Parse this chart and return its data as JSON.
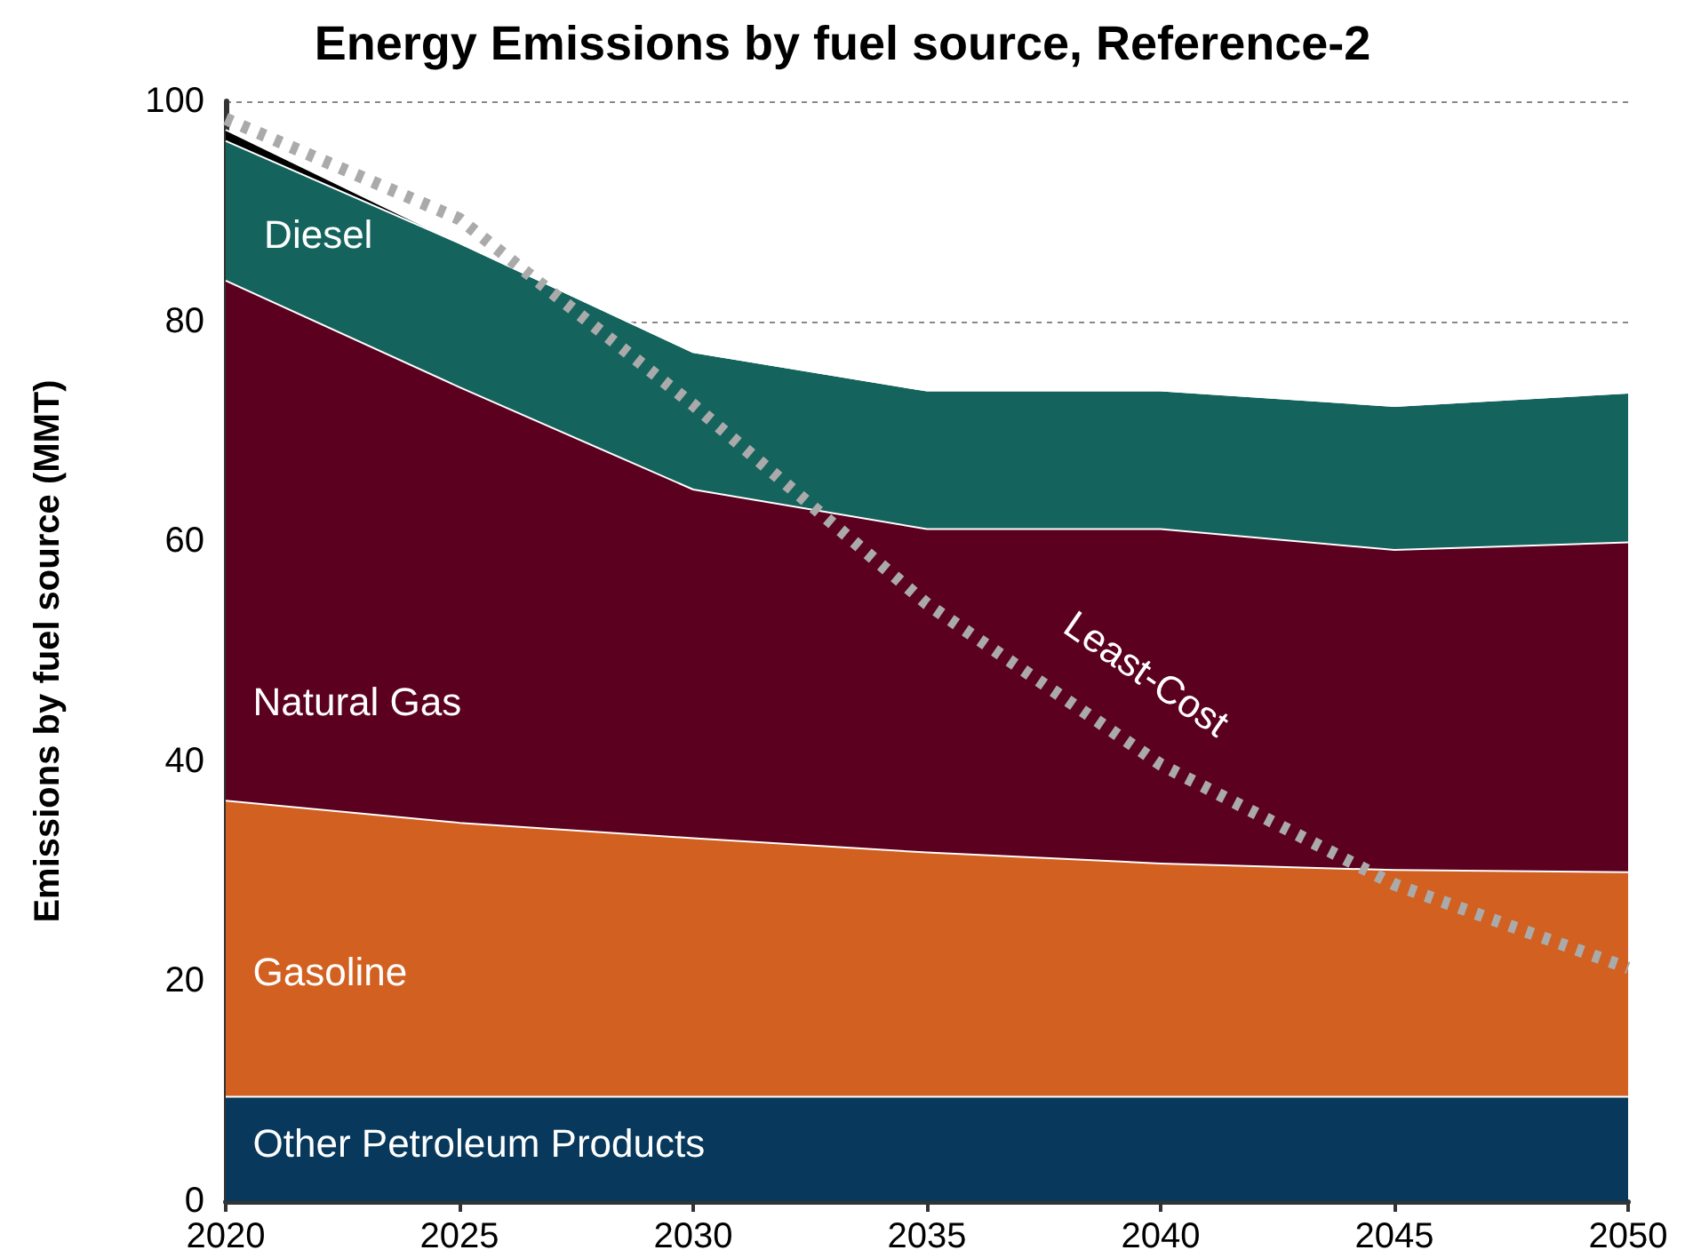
{
  "chart_data": {
    "type": "area",
    "title": "Energy Emissions by fuel source, Reference-2",
    "ylabel": "Emissions by fuel source (MMT)",
    "x": [
      2020,
      2025,
      2030,
      2035,
      2040,
      2045,
      2050
    ],
    "stacked": true,
    "grid": "y",
    "legend": false,
    "xlim": [
      2020,
      2050
    ],
    "xticks": [
      2020,
      2025,
      2030,
      2035,
      2040,
      2045,
      2050
    ],
    "ylim": [
      0,
      100
    ],
    "yticks": [
      0,
      20,
      40,
      60,
      80,
      100
    ],
    "series": [
      {
        "name": "Other Petroleum Products",
        "color": "#08395c",
        "values": [
          9.5,
          9.5,
          9.5,
          9.5,
          9.5,
          9.5,
          9.5
        ]
      },
      {
        "name": "Gasoline",
        "color": "#d26020",
        "values": [
          26.9,
          24.9,
          23.5,
          22.2,
          21.2,
          20.6,
          20.4
        ]
      },
      {
        "name": "Natural Gas",
        "color": "#5c0020",
        "values": [
          47.3,
          39.6,
          31.7,
          29.4,
          30.4,
          29.1,
          30.0
        ]
      },
      {
        "name": "Diesel",
        "color": "#15635d",
        "values": [
          12.7,
          13.1,
          12.5,
          12.6,
          12.6,
          13.1,
          13.6
        ]
      },
      {
        "color": "#000000",
        "values": [
          1.0,
          0,
          0,
          0,
          0,
          0,
          0
        ]
      },
      {
        "name": "Least-Cost",
        "type": "line",
        "line_style": "dotted",
        "color": "#aaaaaa",
        "values": [
          98.4,
          89.3,
          72.4,
          54.3,
          39.7,
          28.8,
          21.2
        ]
      }
    ]
  }
}
